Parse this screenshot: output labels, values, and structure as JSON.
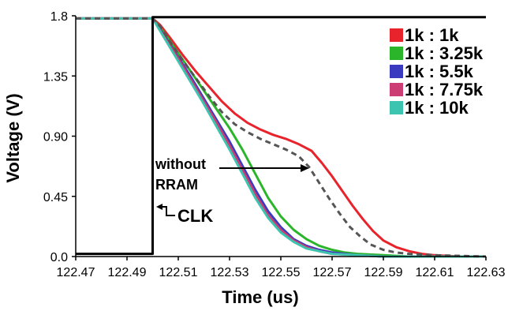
{
  "chart_data": {
    "type": "line",
    "xlabel": "Time (us)",
    "ylabel": "Voltage (V)",
    "xlim": [
      122.47,
      122.63
    ],
    "ylim": [
      0.0,
      1.8
    ],
    "xticks": [
      "122.47",
      "122.49",
      "122.51",
      "122.53",
      "122.55",
      "122.57",
      "122.59",
      "122.61",
      "122.63"
    ],
    "xtick_values": [
      122.47,
      122.49,
      122.51,
      122.53,
      122.55,
      122.57,
      122.59,
      122.61,
      122.63
    ],
    "yticks": [
      "0.0",
      "0.45",
      "0.90",
      "1.35",
      "1.8"
    ],
    "ytick_values": [
      0.0,
      0.45,
      0.9,
      1.35,
      1.8
    ],
    "grid": false,
    "legend_position": "top-right",
    "series": [
      {
        "name": "1k : 1k",
        "color": "#e8232b",
        "style": "solid",
        "x": [
          122.47,
          122.5,
          122.503,
          122.507,
          122.512,
          122.517,
          122.522,
          122.527,
          122.532,
          122.537,
          122.542,
          122.547,
          122.552,
          122.557,
          122.562,
          122.566,
          122.57,
          122.574,
          122.578,
          122.582,
          122.586,
          122.59,
          122.595,
          122.6,
          122.605,
          122.61,
          122.62,
          122.63
        ],
        "y": [
          1.78,
          1.78,
          1.73,
          1.63,
          1.5,
          1.38,
          1.27,
          1.16,
          1.07,
          1.0,
          0.95,
          0.91,
          0.88,
          0.84,
          0.79,
          0.7,
          0.6,
          0.49,
          0.38,
          0.28,
          0.19,
          0.12,
          0.07,
          0.04,
          0.02,
          0.01,
          0.0,
          0.0
        ]
      },
      {
        "name": "1k : 3.25k",
        "color": "#2bb52b",
        "style": "solid",
        "x": [
          122.47,
          122.5,
          122.505,
          122.51,
          122.515,
          122.52,
          122.525,
          122.53,
          122.535,
          122.54,
          122.545,
          122.55,
          122.555,
          122.56,
          122.565,
          122.57,
          122.575,
          122.58,
          122.59,
          122.6,
          122.63
        ],
        "y": [
          1.78,
          1.78,
          1.66,
          1.52,
          1.38,
          1.24,
          1.1,
          0.96,
          0.8,
          0.62,
          0.44,
          0.3,
          0.2,
          0.13,
          0.08,
          0.05,
          0.03,
          0.02,
          0.01,
          0.0,
          0.0
        ]
      },
      {
        "name": "1k : 5.5k",
        "color": "#3a3ac0",
        "style": "solid",
        "x": [
          122.47,
          122.5,
          122.505,
          122.51,
          122.515,
          122.52,
          122.525,
          122.53,
          122.535,
          122.54,
          122.545,
          122.55,
          122.555,
          122.56,
          122.565,
          122.57,
          122.58,
          122.59,
          122.63
        ],
        "y": [
          1.78,
          1.78,
          1.64,
          1.49,
          1.34,
          1.18,
          1.02,
          0.86,
          0.68,
          0.5,
          0.34,
          0.22,
          0.13,
          0.08,
          0.05,
          0.03,
          0.01,
          0.0,
          0.0
        ]
      },
      {
        "name": "1k : 7.75k",
        "color": "#cc3d73",
        "style": "solid",
        "x": [
          122.47,
          122.5,
          122.505,
          122.51,
          122.515,
          122.52,
          122.525,
          122.53,
          122.535,
          122.54,
          122.545,
          122.55,
          122.555,
          122.56,
          122.565,
          122.57,
          122.58,
          122.59,
          122.63
        ],
        "y": [
          1.78,
          1.78,
          1.63,
          1.48,
          1.32,
          1.16,
          1.0,
          0.83,
          0.65,
          0.47,
          0.31,
          0.2,
          0.12,
          0.07,
          0.04,
          0.02,
          0.01,
          0.0,
          0.0
        ]
      },
      {
        "name": "1k : 10k",
        "color": "#3cc4b0",
        "style": "solid",
        "x": [
          122.47,
          122.5,
          122.505,
          122.51,
          122.515,
          122.52,
          122.525,
          122.53,
          122.535,
          122.54,
          122.545,
          122.55,
          122.555,
          122.56,
          122.565,
          122.57,
          122.58,
          122.59,
          122.63
        ],
        "y": [
          1.78,
          1.78,
          1.62,
          1.46,
          1.3,
          1.14,
          0.97,
          0.8,
          0.62,
          0.44,
          0.29,
          0.18,
          0.11,
          0.06,
          0.04,
          0.02,
          0.01,
          0.0,
          0.0
        ]
      },
      {
        "name": "",
        "color": "#555555",
        "style": "dashed",
        "x": [
          122.47,
          122.5,
          122.503,
          122.507,
          122.512,
          122.517,
          122.522,
          122.527,
          122.532,
          122.537,
          122.542,
          122.547,
          122.552,
          122.557,
          122.561,
          122.565,
          122.569,
          122.573,
          122.577,
          122.581,
          122.585,
          122.59,
          122.595,
          122.6,
          122.61,
          122.63
        ],
        "y": [
          1.78,
          1.78,
          1.72,
          1.6,
          1.46,
          1.33,
          1.2,
          1.08,
          0.99,
          0.93,
          0.88,
          0.84,
          0.8,
          0.75,
          0.67,
          0.55,
          0.43,
          0.32,
          0.22,
          0.15,
          0.09,
          0.05,
          0.03,
          0.02,
          0.01,
          0.0
        ]
      },
      {
        "name": "",
        "color": "#000000",
        "style": "solid",
        "x": [
          122.47,
          122.5,
          122.5,
          122.63
        ],
        "y": [
          0.02,
          0.02,
          1.79,
          1.79
        ]
      }
    ],
    "annotations": [
      {
        "text_lines": [
          "without",
          "RRAM"
        ]
      },
      {
        "text": "CLK"
      }
    ]
  }
}
